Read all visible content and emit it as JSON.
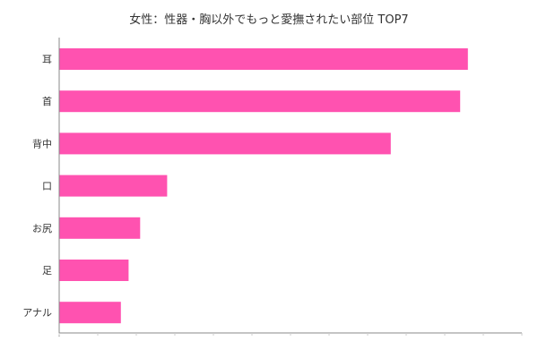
{
  "chart_data": {
    "type": "bar",
    "orientation": "horizontal",
    "title": "女性：性器・胸以外でもっと愛撫されたい部位 TOP7",
    "xlabel": "",
    "ylabel": "",
    "categories": [
      "耳",
      "首",
      "背中",
      "口",
      "お尻",
      "足",
      "アナル"
    ],
    "values": [
      53,
      52,
      43,
      14,
      10.5,
      9,
      8
    ],
    "xlim": [
      0,
      60
    ],
    "grid": false,
    "bar_color": "#ff52b0",
    "axis_color": "#888888"
  }
}
